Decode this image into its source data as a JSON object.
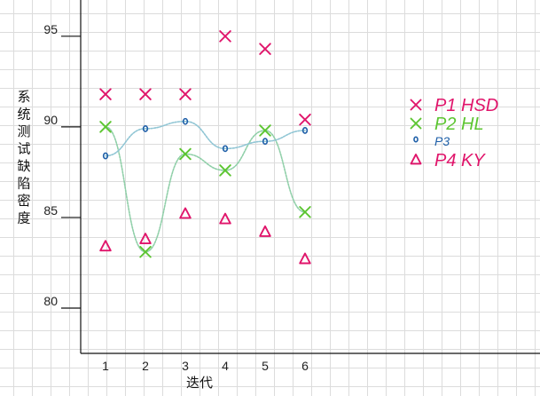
{
  "chart_data": {
    "type": "scatter",
    "ylabel": "系统测试缺陷密度",
    "xlabel": "迭代",
    "x": [
      1,
      2,
      3,
      4,
      5,
      6
    ],
    "xticks": [
      "1",
      "2",
      "3",
      "4",
      "5",
      "6"
    ],
    "yticks": [
      "80",
      "85",
      "90",
      "95"
    ],
    "ylim": [
      77.5,
      97.0
    ],
    "grid": true,
    "legend_position": "right",
    "series": [
      {
        "name": "P1 HSD",
        "marker": "x",
        "color": "#e0156b",
        "values": [
          91.8,
          91.8,
          91.8,
          95.0,
          94.3,
          90.4
        ]
      },
      {
        "name": "P2 HL",
        "marker": "x",
        "color": "#5cc531",
        "values": [
          90.0,
          83.1,
          88.5,
          87.6,
          89.8,
          85.3
        ]
      },
      {
        "name": "P3",
        "marker": "o",
        "color": "#1e5fa8",
        "values": [
          88.4,
          89.9,
          90.3,
          88.8,
          89.2,
          89.8
        ]
      },
      {
        "name": "P4 KY",
        "marker": "triangle",
        "color": "#e0156b",
        "values": [
          83.4,
          83.8,
          85.2,
          84.9,
          84.2,
          82.7
        ]
      }
    ],
    "trend_lines": [
      {
        "series": "P2 HL",
        "color": "#8fcfa8",
        "values": [
          90.0,
          83.1,
          88.5,
          87.6,
          89.8,
          85.3
        ]
      },
      {
        "series": "P3",
        "color": "#8fc5d4",
        "values": [
          88.4,
          89.9,
          90.3,
          88.8,
          89.2,
          89.8
        ]
      }
    ]
  }
}
